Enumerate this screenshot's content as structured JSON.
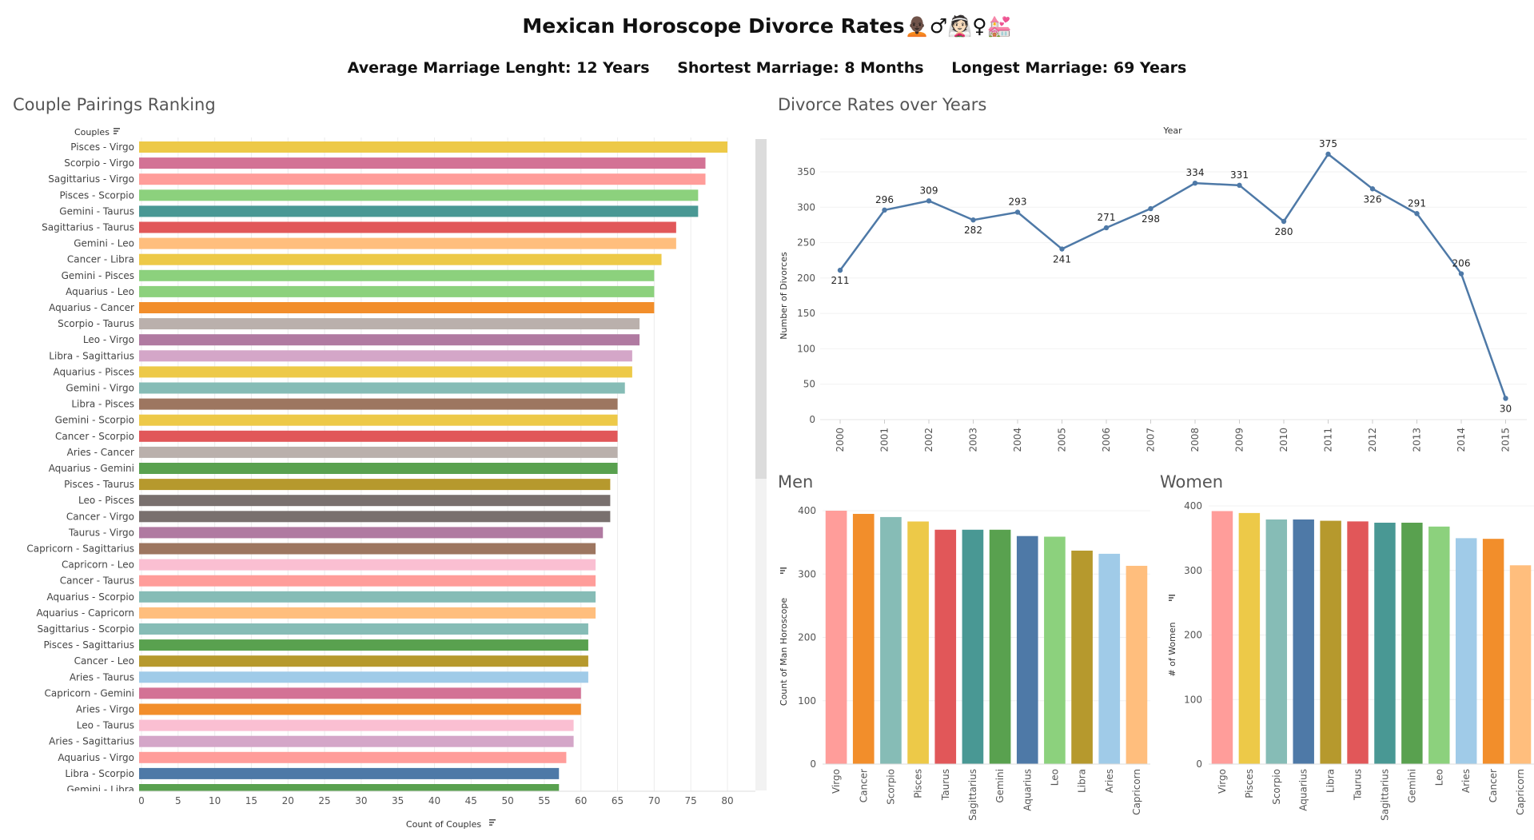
{
  "title": "Mexican Horoscope Divorce Rates",
  "title_emoji": "🧑🏿‍🦲♂👰🏻♀💒",
  "stats": {
    "avg": "Average Marriage Lenght: 12 Years",
    "shortest": "Shortest Marriage: 8 Months",
    "longest": "Longest Marriage: 69 Years"
  },
  "panels": {
    "couples": "Couple Pairings Ranking",
    "years": "Divorce Rates over Years",
    "men": "Men",
    "women": "Women"
  },
  "colors": [
    "#edc948",
    "#d37295",
    "#ff9d9a",
    "#8cd17d",
    "#499894",
    "#e15759",
    "#ffbe7d",
    "#edc948",
    "#8cd17d",
    "#8cd17d",
    "#f28e2b",
    "#bab0ac",
    "#b07aa1",
    "#d4a6c8",
    "#edc948",
    "#86bcb6",
    "#9d7660",
    "#edc948",
    "#e15759",
    "#bab0ac",
    "#59a14f",
    "#b6992d",
    "#79706e",
    "#79706e",
    "#b07aa1",
    "#9d7660",
    "#fabfd2",
    "#ff9d9a",
    "#86bcb6",
    "#ffbe7d",
    "#86bcb6",
    "#59a14f",
    "#b6992d",
    "#a0cbe8",
    "#d37295",
    "#f28e2b",
    "#fabfd2",
    "#d4a6c8",
    "#ff9d9a",
    "#4e79a7",
    "#59a14f"
  ],
  "chart_data": [
    {
      "type": "bar",
      "orientation": "horizontal",
      "title": "Couple Pairings Ranking",
      "header": "Couples",
      "xlabel": "Count of Couples",
      "xlim": [
        0,
        85
      ],
      "xticks": [
        0,
        5,
        10,
        15,
        20,
        25,
        30,
        35,
        40,
        45,
        50,
        55,
        60,
        65,
        70,
        75,
        80
      ],
      "categories": [
        "Pisces - Virgo",
        "Scorpio - Virgo",
        "Sagittarius - Virgo",
        "Pisces - Scorpio",
        "Gemini - Taurus",
        "Sagittarius - Taurus",
        "Gemini - Leo",
        "Cancer - Libra",
        "Gemini - Pisces",
        "Aquarius - Leo",
        "Aquarius - Cancer",
        "Scorpio - Taurus",
        "Leo - Virgo",
        "Libra - Sagittarius",
        "Aquarius - Pisces",
        "Gemini - Virgo",
        "Libra - Pisces",
        "Gemini - Scorpio",
        "Cancer - Scorpio",
        "Aries - Cancer",
        "Aquarius - Gemini",
        "Pisces - Taurus",
        "Leo - Pisces",
        "Cancer - Virgo",
        "Taurus - Virgo",
        "Capricorn - Sagittarius",
        "Capricorn - Leo",
        "Cancer - Taurus",
        "Aquarius - Scorpio",
        "Aquarius - Capricorn",
        "Sagittarius - Scorpio",
        "Pisces - Sagittarius",
        "Cancer - Leo",
        "Aries - Taurus",
        "Capricorn - Gemini",
        "Aries - Virgo",
        "Leo - Taurus",
        "Aries - Sagittarius",
        "Aquarius - Virgo",
        "Libra - Scorpio",
        "Gemini - Libra"
      ],
      "values": [
        80,
        77,
        77,
        76,
        76,
        73,
        73,
        71,
        70,
        70,
        70,
        68,
        68,
        67,
        67,
        66,
        65,
        65,
        65,
        65,
        65,
        64,
        64,
        64,
        63,
        62,
        62,
        62,
        62,
        62,
        61,
        61,
        61,
        61,
        60,
        60,
        59,
        59,
        58,
        57,
        57
      ]
    },
    {
      "type": "line",
      "title": "Divorce Rates over Years",
      "header": "Year",
      "ylabel": "Number of Divorces",
      "ylim": [
        0,
        380
      ],
      "yticks": [
        0,
        50,
        100,
        150,
        200,
        250,
        300,
        350
      ],
      "x": [
        "2000",
        "2001",
        "2002",
        "2003",
        "2004",
        "2005",
        "2006",
        "2007",
        "2008",
        "2009",
        "2010",
        "2011",
        "2012",
        "2013",
        "2014",
        "2015"
      ],
      "values": [
        211,
        296,
        309,
        282,
        293,
        241,
        271,
        298,
        334,
        331,
        280,
        375,
        326,
        291,
        206,
        30
      ],
      "label_pos": [
        "below",
        "above",
        "above",
        "below",
        "above",
        "below",
        "above",
        "below",
        "above",
        "above",
        "below",
        "above",
        "below",
        "above",
        "above",
        "below"
      ],
      "color": "#4e79a7"
    },
    {
      "type": "bar",
      "title": "Men",
      "ylabel": "Count of Man Horoscope",
      "ylim": [
        0,
        410
      ],
      "yticks": [
        0,
        100,
        200,
        300,
        400
      ],
      "categories": [
        "Virgo",
        "Cancer",
        "Scorpio",
        "Pisces",
        "Taurus",
        "Sagittarius",
        "Gemini",
        "Aquarius",
        "Leo",
        "Libra",
        "Aries",
        "Capricorn"
      ],
      "values": [
        400,
        395,
        390,
        383,
        370,
        370,
        370,
        360,
        359,
        337,
        332,
        313
      ],
      "colors": [
        "#ff9d9a",
        "#f28e2b",
        "#86bcb6",
        "#edc948",
        "#e15759",
        "#499894",
        "#59a14f",
        "#4e79a7",
        "#8cd17d",
        "#b6992d",
        "#a0cbe8",
        "#ffbe7d"
      ]
    },
    {
      "type": "bar",
      "title": "Women",
      "ylabel": "# of Women",
      "ylim": [
        0,
        410
      ],
      "yticks": [
        0,
        100,
        200,
        300,
        400
      ],
      "categories": [
        "Virgo",
        "Pisces",
        "Scorpio",
        "Aquarius",
        "Libra",
        "Taurus",
        "Sagittarius",
        "Gemini",
        "Leo",
        "Aries",
        "Cancer",
        "Capricorn"
      ],
      "values": [
        392,
        389,
        379,
        379,
        377,
        376,
        374,
        374,
        368,
        350,
        349,
        308
      ],
      "colors": [
        "#ff9d9a",
        "#edc948",
        "#86bcb6",
        "#4e79a7",
        "#b6992d",
        "#e15759",
        "#499894",
        "#59a14f",
        "#8cd17d",
        "#a0cbe8",
        "#f28e2b",
        "#ffbe7d"
      ]
    }
  ]
}
